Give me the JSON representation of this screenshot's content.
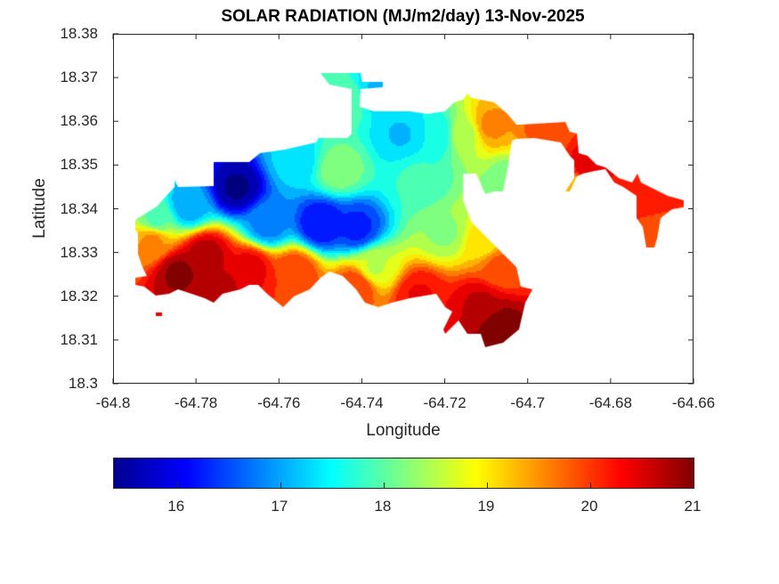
{
  "chart_data": {
    "type": "heatmap",
    "subtype": "filled-contour-map",
    "title": "SOLAR RADIATION (MJ/m2/day) 13-Nov-2025",
    "xlabel": "Longitude",
    "ylabel": "Latitude",
    "xlim": [
      -64.8,
      -64.66
    ],
    "ylim": [
      18.3,
      18.38
    ],
    "xticks": [
      "-64.8",
      "-64.78",
      "-64.76",
      "-64.74",
      "-64.72",
      "-64.7",
      "-64.68",
      "-64.66"
    ],
    "yticks": [
      "18.3",
      "18.31",
      "18.32",
      "18.33",
      "18.34",
      "18.35",
      "18.36",
      "18.37",
      "18.38"
    ],
    "grid": false,
    "colormap": "jet",
    "colorbar": {
      "placement": "bottom",
      "range": [
        15.39,
        21
      ],
      "ticks": [
        "16",
        "17",
        "18",
        "19",
        "20",
        "21"
      ]
    },
    "samples": [
      {
        "lon": -64.7704,
        "lat": 18.345,
        "value": 15.5
      },
      {
        "lon": -64.75,
        "lat": 18.3368,
        "value": 16.1
      },
      {
        "lon": -64.7414,
        "lat": 18.3358,
        "value": 16.3
      },
      {
        "lon": -64.7629,
        "lat": 18.3368,
        "value": 16.8
      },
      {
        "lon": -64.7822,
        "lat": 18.3409,
        "value": 17.0
      },
      {
        "lon": -64.7897,
        "lat": 18.3379,
        "value": 18.0
      },
      {
        "lon": -64.7908,
        "lat": 18.3328,
        "value": 19.5
      },
      {
        "lon": -64.7843,
        "lat": 18.3256,
        "value": 20.9
      },
      {
        "lon": -64.7779,
        "lat": 18.3297,
        "value": 20.7
      },
      {
        "lon": -64.7736,
        "lat": 18.3226,
        "value": 20.6
      },
      {
        "lon": -64.7672,
        "lat": 18.3267,
        "value": 20.4
      },
      {
        "lon": -64.7564,
        "lat": 18.3256,
        "value": 20.0
      },
      {
        "lon": -64.7414,
        "lat": 18.3226,
        "value": 20.0
      },
      {
        "lon": -64.7371,
        "lat": 18.3267,
        "value": 18.6
      },
      {
        "lon": -64.7264,
        "lat": 18.3205,
        "value": 20.3
      },
      {
        "lon": -64.707,
        "lat": 18.3134,
        "value": 21.0
      },
      {
        "lon": -64.7113,
        "lat": 18.3185,
        "value": 20.6
      },
      {
        "lon": -64.707,
        "lat": 18.3267,
        "value": 19.8
      },
      {
        "lon": -64.7113,
        "lat": 18.3328,
        "value": 19.0
      },
      {
        "lon": -64.7199,
        "lat": 18.3348,
        "value": 18.3
      },
      {
        "lon": -64.7264,
        "lat": 18.347,
        "value": 17.8
      },
      {
        "lon": -64.7307,
        "lat": 18.3572,
        "value": 17.2
      },
      {
        "lon": -64.7221,
        "lat": 18.3572,
        "value": 17.5
      },
      {
        "lon": -64.7156,
        "lat": 18.3572,
        "value": 18.5
      },
      {
        "lon": -64.7092,
        "lat": 18.3592,
        "value": 19.5
      },
      {
        "lon": -64.7457,
        "lat": 18.3491,
        "value": 18.2
      },
      {
        "lon": -64.7435,
        "lat": 18.3653,
        "value": 18.0
      },
      {
        "lon": -64.7371,
        "lat": 18.3674,
        "value": 17.2
      },
      {
        "lon": -64.7564,
        "lat": 18.3511,
        "value": 17.3
      },
      {
        "lon": -64.6963,
        "lat": 18.3582,
        "value": 19.8
      },
      {
        "lon": -64.6856,
        "lat": 18.3501,
        "value": 20.5
      },
      {
        "lon": -64.6727,
        "lat": 18.3429,
        "value": 20.2
      },
      {
        "lon": -64.6705,
        "lat": 18.3338,
        "value": 19.8
      },
      {
        "lon": -64.6899,
        "lat": 18.345,
        "value": 19.2
      },
      {
        "lon": -64.7049,
        "lat": 18.347,
        "value": 18.2
      }
    ]
  }
}
